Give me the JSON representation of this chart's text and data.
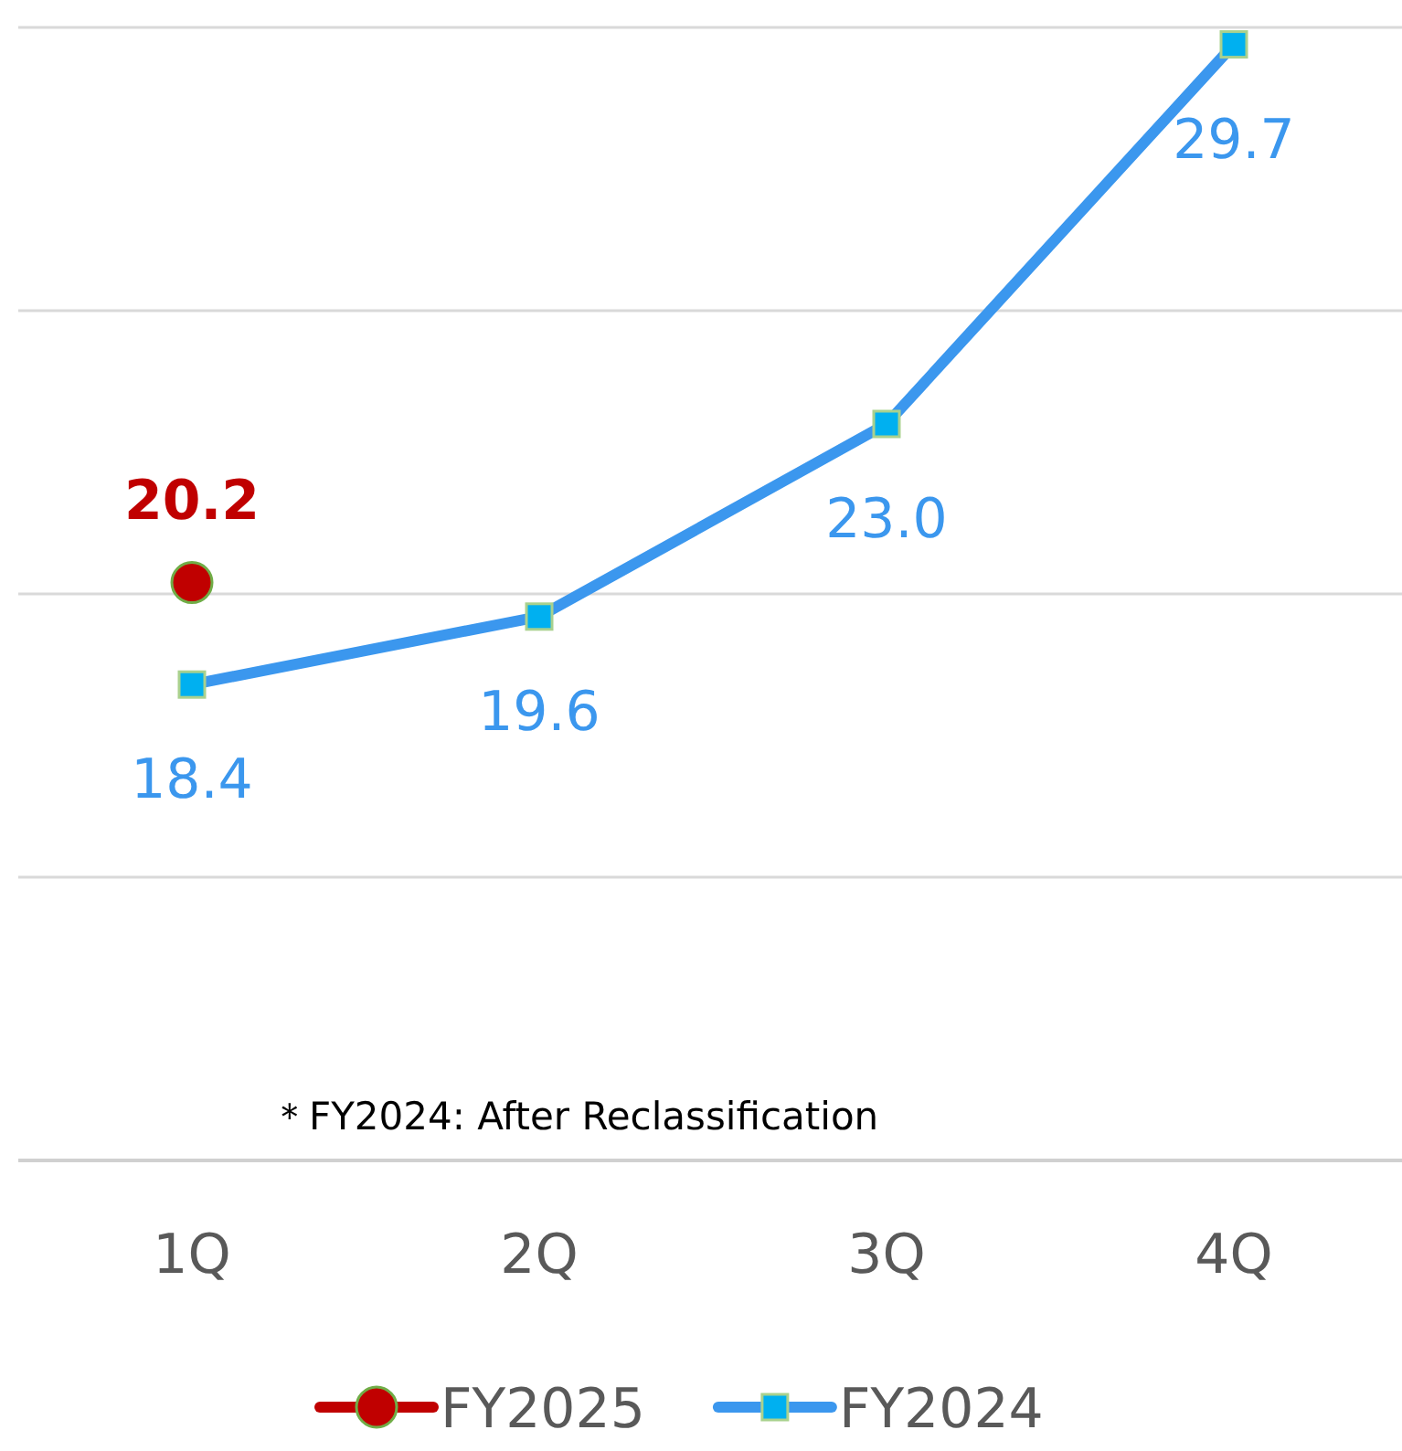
{
  "chart_data": {
    "type": "line",
    "categories": [
      "1Q",
      "2Q",
      "3Q",
      "4Q"
    ],
    "series": [
      {
        "name": "FY2025",
        "color": "#c00000",
        "values": [
          20.2,
          null,
          null,
          null
        ],
        "value_labels": [
          "20.2",
          null,
          null,
          null
        ],
        "marker": "circle"
      },
      {
        "name": "FY2024",
        "color": "#3b97ee",
        "values": [
          18.4,
          19.6,
          23.0,
          29.7
        ],
        "value_labels": [
          "18.4",
          "19.6",
          "23.0",
          "29.7"
        ],
        "marker": "square"
      }
    ],
    "ylim": [
      10,
      30
    ],
    "yticks": [
      {
        "value": 10,
        "label": null
      },
      {
        "value": 15,
        "label": null
      },
      {
        "value": 20,
        "label": null
      },
      {
        "value": 25,
        "label": null
      },
      {
        "value": 30,
        "label": null
      }
    ],
    "grid": "y",
    "tick_labels": "x",
    "legend": "bottom",
    "annotations": [
      "＊FY2024: After Reclassification"
    ]
  }
}
